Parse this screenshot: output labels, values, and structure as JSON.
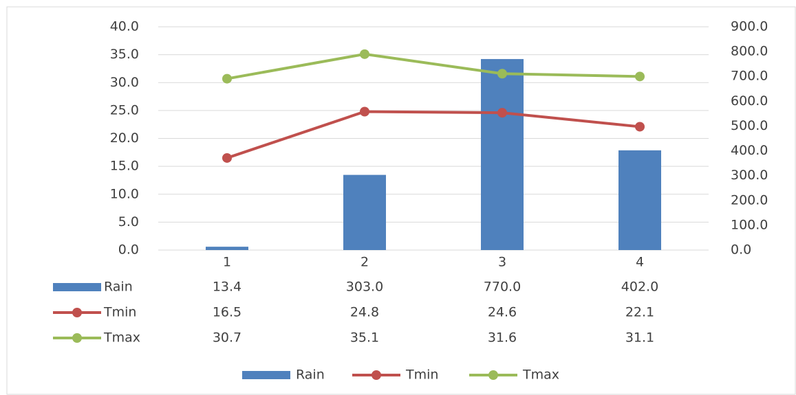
{
  "chart_data": {
    "type": "bar-line",
    "categories": [
      "1",
      "2",
      "3",
      "4"
    ],
    "series": [
      {
        "name": "Rain",
        "type": "bar",
        "axis": "y2",
        "color": "#4f81bd",
        "values": [
          13.4,
          303,
          770,
          402
        ],
        "value_labels": [
          "13.4",
          "303.0",
          "770.0",
          "402.0"
        ]
      },
      {
        "name": "Tmin",
        "type": "line",
        "color": "#c0504d",
        "values": [
          16.5,
          24.8,
          24.6,
          22.1
        ]
      },
      {
        "name": "Tmax",
        "type": "line",
        "color": "#9bbb59",
        "values": [
          30.7,
          35.1,
          31.6,
          31.1
        ]
      }
    ],
    "ylim": [
      0,
      40
    ],
    "yticks": [
      {
        "value": 0,
        "label": "0.0"
      },
      {
        "value": 5,
        "label": "5.0"
      },
      {
        "value": 10,
        "label": "10.0"
      },
      {
        "value": 15,
        "label": "15.0"
      },
      {
        "value": 20,
        "label": "20.0"
      },
      {
        "value": 25,
        "label": "25.0"
      },
      {
        "value": 30,
        "label": "30.0"
      },
      {
        "value": 35,
        "label": "35.0"
      },
      {
        "value": 40,
        "label": "40.0"
      }
    ],
    "y2lim": [
      0,
      900
    ],
    "y2ticks": [
      {
        "value": 0,
        "label": "0.0"
      },
      {
        "value": 100,
        "label": "100.0"
      },
      {
        "value": 200,
        "label": "200.0"
      },
      {
        "value": 300,
        "label": "300.0"
      },
      {
        "value": 400,
        "label": "400.0"
      },
      {
        "value": 500,
        "label": "500.0"
      },
      {
        "value": 600,
        "label": "600.0"
      },
      {
        "value": 700,
        "label": "700.0"
      },
      {
        "value": 800,
        "label": "800.0"
      },
      {
        "value": 900,
        "label": "900.0"
      }
    ],
    "grid": true,
    "data_table": true,
    "legend": "bottom"
  }
}
